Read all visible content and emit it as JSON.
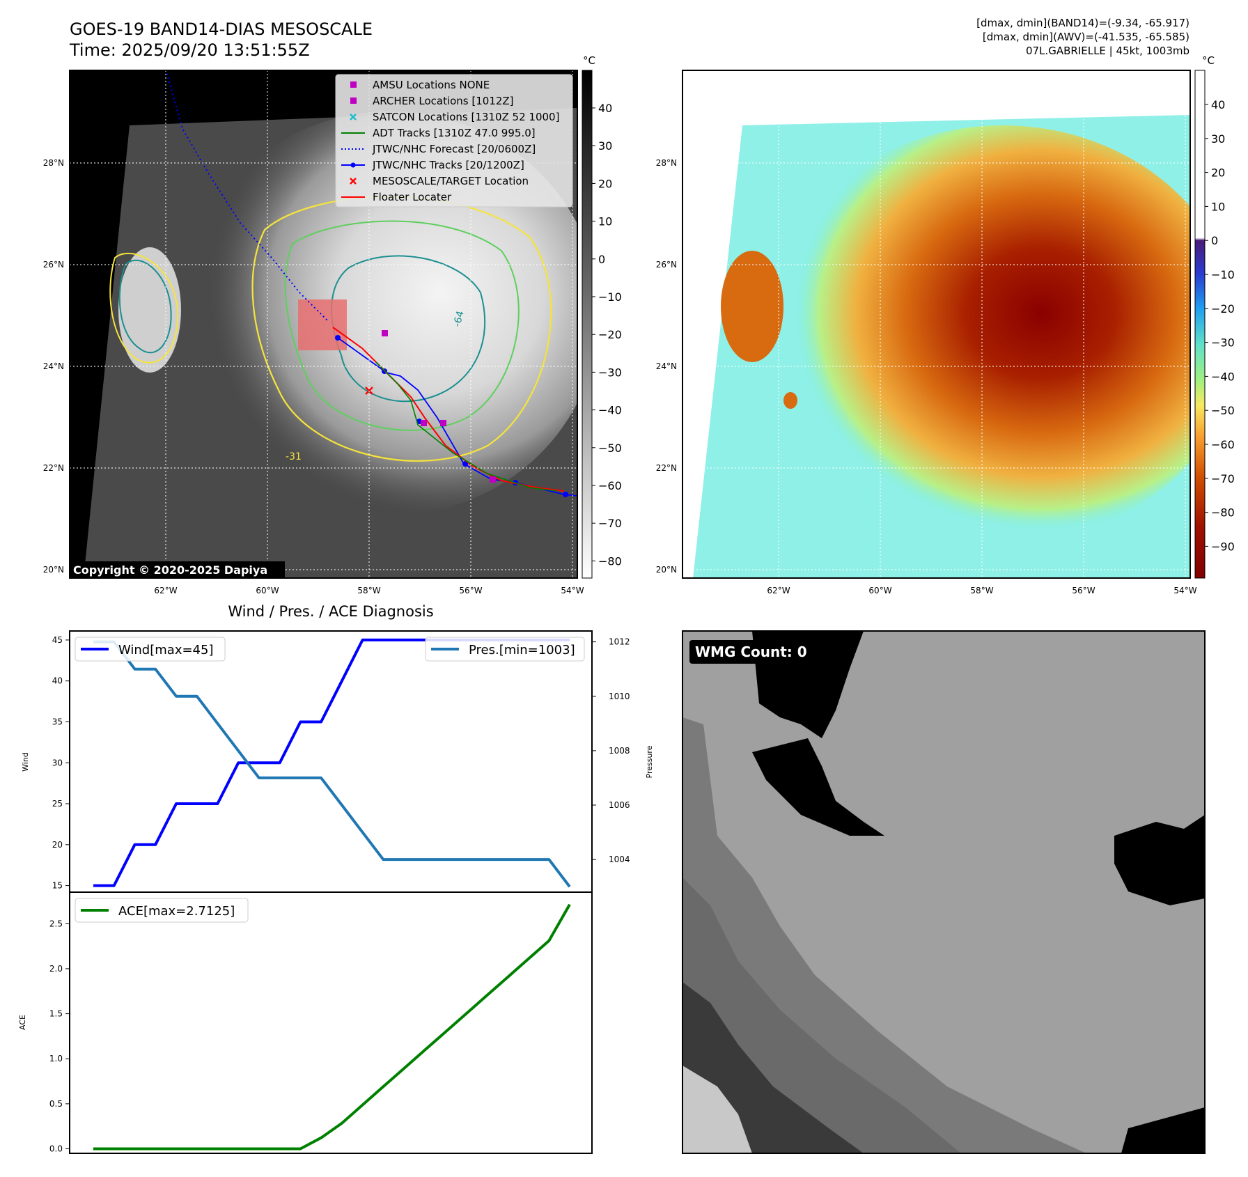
{
  "header": {
    "title_line1": "GOES-19 BAND14-DIAS MESOSCALE",
    "title_line2": "Time: 2025/09/20 13:51:55Z",
    "info_line1": "[dmax, dmin](BAND14)=(-9.34, -65.917)",
    "info_line2": "[dmax, dmin](AWV)=(-41.535, -65.585)",
    "info_line3": "07L.GABRIELLE | 45kt, 1003mb"
  },
  "map_axes": {
    "lat_labels": [
      "28°N",
      "26°N",
      "24°N",
      "22°N",
      "20°N"
    ],
    "lon_labels": [
      "62°W",
      "60°W",
      "58°W",
      "56°W",
      "54°W"
    ],
    "copyright": "Copyright © 2020-2025 Dapiya",
    "contour_labels": [
      "-64",
      "-31"
    ]
  },
  "colorbar_gray": {
    "unit": "°C",
    "ticks": [
      "40",
      "30",
      "20",
      "10",
      "0",
      "−10",
      "−20",
      "−30",
      "−40",
      "−50",
      "−60",
      "−70",
      "−80"
    ]
  },
  "colorbar_awv": {
    "unit": "°C",
    "ticks": [
      "40",
      "30",
      "20",
      "10",
      "0",
      "−10",
      "−20",
      "−30",
      "−40",
      "−50",
      "−60",
      "−70",
      "−80",
      "−90"
    ]
  },
  "legend": {
    "items": [
      {
        "label": "AMSU Locations NONE",
        "marker": "square",
        "color": "#c000c0"
      },
      {
        "label": "ARCHER Locations [1012Z]",
        "marker": "square",
        "color": "#c000c0"
      },
      {
        "label": "SATCON Locations [1310Z 52 1000]",
        "marker": "x",
        "color": "#17becf"
      },
      {
        "label": "ADT Tracks [1310Z 47.0 995.0]",
        "marker": "line",
        "color": "#008000"
      },
      {
        "label": "JTWC/NHC Forecast [20/0600Z]",
        "marker": "dotted",
        "color": "#0000ff"
      },
      {
        "label": "JTWC/NHC Tracks [20/1200Z]",
        "marker": "line-dot",
        "color": "#0000ff"
      },
      {
        "label": "MESOSCALE/TARGET Location",
        "marker": "x",
        "color": "#ff0000"
      },
      {
        "label": "Floater Locater",
        "marker": "line",
        "color": "#ff0000"
      }
    ]
  },
  "wmg": {
    "label": "WMG Count: 0"
  },
  "chart_data": [
    {
      "type": "line",
      "title": "Wind / Pres. / ACE Diagnosis",
      "ylabel": "Wind",
      "ylabel_right": "Pressure",
      "ylim": [
        14.2,
        46.1
      ],
      "ylim_right": [
        1002.8,
        1012.4
      ],
      "yticks": [
        15,
        20,
        25,
        30,
        35,
        40,
        45
      ],
      "yticks_right": [
        1004,
        1006,
        1008,
        1010,
        1012
      ],
      "x": [
        0,
        1,
        2,
        3,
        4,
        5,
        6,
        7,
        8,
        9,
        10,
        11,
        12,
        13,
        14,
        15,
        16,
        17,
        18,
        19,
        20,
        21,
        22,
        23
      ],
      "series": [
        {
          "name": "Wind[max=45]",
          "color": "#0000ff",
          "axis": "left",
          "values": [
            15,
            15,
            20,
            20,
            25,
            25,
            25,
            30,
            30,
            30,
            35,
            35,
            40,
            45,
            45,
            45,
            45,
            45,
            45,
            45,
            45,
            45,
            45,
            45
          ]
        },
        {
          "name": "Pres.[min=1003]",
          "color": "#1f77b4",
          "axis": "right",
          "values": [
            1012,
            1012,
            1011,
            1011,
            1010,
            1010,
            1009,
            1008,
            1007,
            1007,
            1007,
            1007,
            1006,
            1005,
            1004,
            1004,
            1004,
            1004,
            1004,
            1004,
            1004,
            1004,
            1004,
            1003
          ]
        }
      ]
    },
    {
      "type": "line",
      "title": "",
      "ylabel": "ACE",
      "ylim": [
        -0.05,
        2.85
      ],
      "yticks": [
        0.0,
        0.5,
        1.0,
        1.5,
        2.0,
        2.5
      ],
      "ytick_labels": [
        "0.0",
        "0.5",
        "1.0",
        "1.5",
        "2.0",
        "2.5"
      ],
      "x": [
        0,
        1,
        2,
        3,
        4,
        5,
        6,
        7,
        8,
        9,
        10,
        11,
        12,
        13,
        14,
        15,
        16,
        17,
        18,
        19,
        20,
        21,
        22,
        23
      ],
      "series": [
        {
          "name": "ACE[max=2.7125]",
          "color": "#008000",
          "values": [
            0,
            0,
            0,
            0,
            0,
            0,
            0,
            0,
            0,
            0,
            0,
            0.1225,
            0.285,
            0.4875,
            0.69,
            0.8925,
            1.095,
            1.2975,
            1.5,
            1.7025,
            1.905,
            2.1075,
            2.31,
            2.7125
          ]
        }
      ]
    }
  ]
}
